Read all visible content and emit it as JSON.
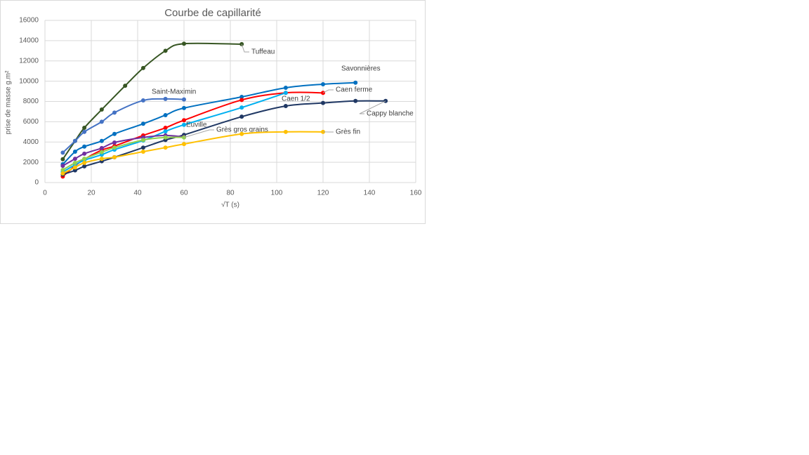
{
  "chart_data": {
    "type": "line",
    "title": "Courbe de capillarité",
    "xlabel": "√T  (s)",
    "ylabel": "prise de masse g.m²",
    "xlim": [
      0,
      160
    ],
    "xticks": [
      0,
      20,
      40,
      60,
      80,
      100,
      120,
      140,
      160
    ],
    "ylim": [
      0,
      16000
    ],
    "yticks": [
      0,
      2000,
      4000,
      6000,
      8000,
      10000,
      12000,
      14000,
      16000
    ],
    "grid": true,
    "series": [
      {
        "name": "Tuffeau",
        "color": "#375623",
        "label_color": "#404040",
        "x": [
          7.7,
          13,
          17,
          24.5,
          34.6,
          42.4,
          52,
          60,
          84.9
        ],
        "values": [
          2300,
          4100,
          5400,
          7200,
          9550,
          11300,
          13000,
          13700,
          13650
        ]
      },
      {
        "name": "Saint-Maximin",
        "color": "#4472c4",
        "label_color": "#404040",
        "x": [
          7.7,
          13,
          17,
          24.5,
          30,
          42.4,
          52,
          60
        ],
        "values": [
          2950,
          4100,
          5000,
          6000,
          6900,
          8100,
          8250,
          8200
        ]
      },
      {
        "name": "Savonnières",
        "color": "#0070c0",
        "label_color": "#404040",
        "x": [
          7.7,
          13,
          17,
          24.5,
          30,
          42.4,
          52,
          60,
          84.9,
          103.9,
          120,
          134
        ],
        "values": [
          1800,
          3050,
          3550,
          4100,
          4800,
          5800,
          6650,
          7350,
          8450,
          9350,
          9700,
          9850
        ]
      },
      {
        "name": "Caen ferme",
        "color": "#ff0000",
        "label_color": "#404040",
        "x": [
          7.7,
          13,
          17,
          24.5,
          30,
          42.4,
          52,
          60,
          84.9,
          103.9,
          120
        ],
        "values": [
          600,
          1650,
          2300,
          3200,
          3600,
          4650,
          5400,
          6150,
          8150,
          8850,
          8850
        ]
      },
      {
        "name": "Caen 1/2",
        "color": "#00b0f0",
        "label_color": "#404040",
        "x": [
          7.7,
          13,
          17,
          24.5,
          30,
          42.4,
          52,
          60,
          84.9,
          103.9
        ],
        "values": [
          1050,
          1750,
          2200,
          2750,
          3250,
          4150,
          5050,
          5700,
          7400,
          8850
        ]
      },
      {
        "name": "Cappy blanche",
        "color": "#203864",
        "label_color": "#404040",
        "x": [
          7.7,
          13,
          17,
          24.5,
          30,
          42.4,
          52,
          60,
          84.9,
          103.9,
          120,
          134,
          147
        ],
        "values": [
          800,
          1200,
          1600,
          2100,
          2500,
          3450,
          4200,
          4700,
          6500,
          7550,
          7850,
          8050,
          8050
        ]
      },
      {
        "name": "Euville",
        "color": "#7030a0",
        "label_color": "#7030a0",
        "x": [
          7.7,
          13,
          17,
          24.5,
          30,
          42.4,
          52,
          60
        ],
        "values": [
          1650,
          2350,
          2850,
          3400,
          3950,
          4450,
          4650,
          4500
        ]
      },
      {
        "name": "Grès gros grains",
        "color": "#92d050",
        "label_color": "#00b050",
        "x": [
          7.7,
          13,
          17,
          24.5,
          30,
          42.4,
          52,
          60
        ],
        "values": [
          1250,
          1950,
          2350,
          3000,
          3450,
          4200,
          4450,
          4450
        ]
      },
      {
        "name": "Grès fin",
        "color": "#ffc000",
        "label_color": "#404040",
        "x": [
          7.7,
          13,
          17,
          24.5,
          30,
          42.4,
          52,
          60,
          84.9,
          103.9,
          120
        ],
        "values": [
          900,
          1500,
          1950,
          2350,
          2500,
          3050,
          3450,
          3800,
          4800,
          5000,
          5000
        ]
      }
    ]
  }
}
